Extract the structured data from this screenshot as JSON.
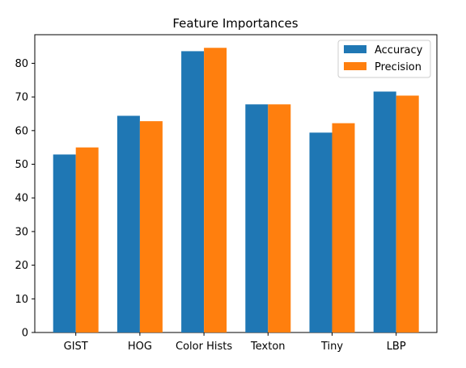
{
  "chart_data": {
    "type": "bar",
    "title": "Feature Importances",
    "xlabel": "",
    "ylabel": "",
    "categories": [
      "GIST",
      "HOG",
      "Color Hists",
      "Texton",
      "Tiny",
      "LBP"
    ],
    "series": [
      {
        "name": "Accuracy",
        "color": "#1f77b4",
        "values": [
          52.9,
          64.4,
          83.6,
          67.8,
          59.4,
          71.6
        ]
      },
      {
        "name": "Precision",
        "color": "#ff7f0e",
        "values": [
          55.0,
          62.8,
          84.6,
          67.8,
          62.2,
          70.4
        ]
      }
    ],
    "ylim": [
      0,
      88.5
    ],
    "yticks": [
      0,
      10,
      20,
      30,
      40,
      50,
      60,
      70,
      80
    ],
    "grid": false,
    "legend_position": "top-right"
  }
}
